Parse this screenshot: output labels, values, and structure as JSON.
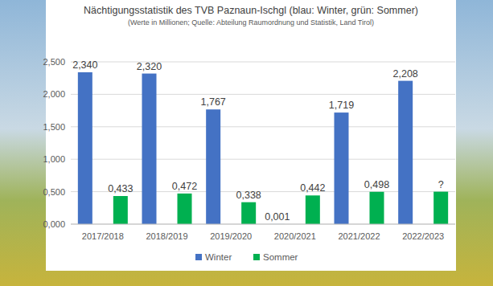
{
  "chart_data": {
    "type": "bar",
    "title": "Nächtigungsstatistik des TVB Paznaun-Ischgl (blau: Winter, grün: Sommer)",
    "subtitle": "(Werte in Millionen; Quelle: Abteilung Raumordnung und Statistik, Land Tirol)",
    "categories": [
      "2017/2018",
      "2018/2019",
      "2019/2020",
      "2020/2021",
      "2021/2022",
      "2022/2023"
    ],
    "series": [
      {
        "name": "Winter",
        "color": "#4472c4",
        "values": [
          2.34,
          2.32,
          1.767,
          0.001,
          1.719,
          2.208
        ],
        "value_labels": [
          "2,340",
          "2,320",
          "1,767",
          "0,001",
          "1,719",
          "2,208"
        ]
      },
      {
        "name": "Sommer",
        "color": "#00b050",
        "values": [
          0.433,
          0.472,
          0.338,
          0.442,
          0.498,
          0.5
        ],
        "value_labels": [
          "0,433",
          "0,472",
          "0,338",
          "0,442",
          "0,498",
          "?"
        ]
      }
    ],
    "ylim": [
      0,
      2.5
    ],
    "yticks": [
      {
        "value": 0,
        "label": "0,000"
      },
      {
        "value": 0.5,
        "label": "0,500"
      },
      {
        "value": 1,
        "label": "1,000"
      },
      {
        "value": 1.5,
        "label": "1,500"
      },
      {
        "value": 2,
        "label": "2,000"
      },
      {
        "value": 2.5,
        "label": "2,500"
      }
    ],
    "grid": true,
    "legend": "bottom",
    "data_labels": true
  }
}
